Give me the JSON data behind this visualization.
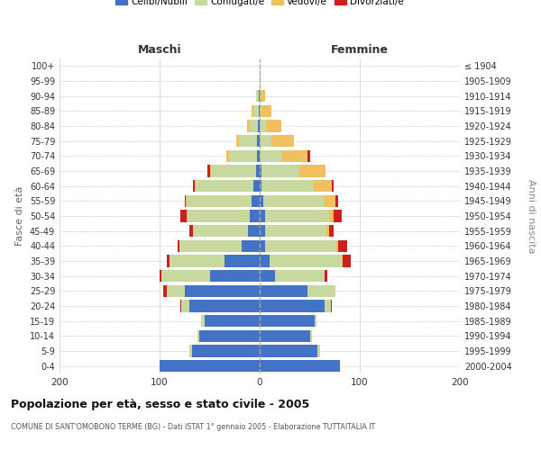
{
  "age_groups": [
    "0-4",
    "5-9",
    "10-14",
    "15-19",
    "20-24",
    "25-29",
    "30-34",
    "35-39",
    "40-44",
    "45-49",
    "50-54",
    "55-59",
    "60-64",
    "65-69",
    "70-74",
    "75-79",
    "80-84",
    "85-89",
    "90-94",
    "95-99",
    "100+"
  ],
  "birth_years": [
    "2000-2004",
    "1995-1999",
    "1990-1994",
    "1985-1989",
    "1980-1984",
    "1975-1979",
    "1970-1974",
    "1965-1969",
    "1960-1964",
    "1955-1959",
    "1950-1954",
    "1945-1949",
    "1940-1944",
    "1935-1939",
    "1930-1934",
    "1925-1929",
    "1920-1924",
    "1915-1919",
    "1910-1914",
    "1905-1909",
    "≤ 1904"
  ],
  "males_celibi": [
    100,
    68,
    60,
    55,
    70,
    75,
    50,
    35,
    18,
    12,
    10,
    8,
    6,
    4,
    3,
    3,
    2,
    1,
    1,
    0,
    0
  ],
  "males_coniugati": [
    0,
    2,
    2,
    4,
    8,
    18,
    48,
    55,
    62,
    55,
    62,
    65,
    58,
    45,
    28,
    18,
    8,
    5,
    3,
    0,
    0
  ],
  "males_vedovi": [
    0,
    0,
    0,
    0,
    0,
    0,
    0,
    0,
    0,
    0,
    1,
    1,
    1,
    1,
    2,
    2,
    3,
    2,
    0,
    0,
    0
  ],
  "males_divorziati": [
    0,
    0,
    0,
    0,
    1,
    3,
    2,
    3,
    2,
    3,
    6,
    1,
    2,
    2,
    0,
    0,
    0,
    0,
    0,
    0,
    0
  ],
  "females_nubili": [
    80,
    58,
    50,
    55,
    65,
    48,
    15,
    10,
    5,
    5,
    5,
    4,
    2,
    2,
    0,
    0,
    0,
    0,
    0,
    0,
    0
  ],
  "females_coniugate": [
    0,
    2,
    2,
    2,
    6,
    28,
    50,
    72,
    72,
    62,
    65,
    60,
    52,
    38,
    22,
    12,
    6,
    2,
    0,
    0,
    0
  ],
  "females_vedove": [
    0,
    0,
    0,
    0,
    0,
    0,
    0,
    1,
    1,
    2,
    4,
    12,
    18,
    26,
    26,
    22,
    16,
    10,
    5,
    1,
    0
  ],
  "females_divorziate": [
    0,
    0,
    0,
    0,
    1,
    0,
    3,
    8,
    9,
    5,
    8,
    2,
    2,
    0,
    2,
    0,
    0,
    0,
    0,
    0,
    0
  ],
  "colors": {
    "celibi": "#4472c4",
    "coniugati": "#c8d9a0",
    "vedovi": "#f0c060",
    "divorziati": "#cc2020"
  },
  "title": "Popolazione per età, sesso e stato civile - 2005",
  "subtitle": "COMUNE DI SANT'OMOBONO TERME (BG) - Dati ISTAT 1° gennaio 2005 - Elaborazione TUTTAITALIA.IT",
  "xlabel_left": "Maschi",
  "xlabel_right": "Femmine",
  "ylabel_left": "Fasce di età",
  "ylabel_right": "Anni di nascita",
  "xlim": 200,
  "legend_labels": [
    "Celibi/Nubili",
    "Coniugati/e",
    "Vedovi/e",
    "Divorziati/e"
  ]
}
